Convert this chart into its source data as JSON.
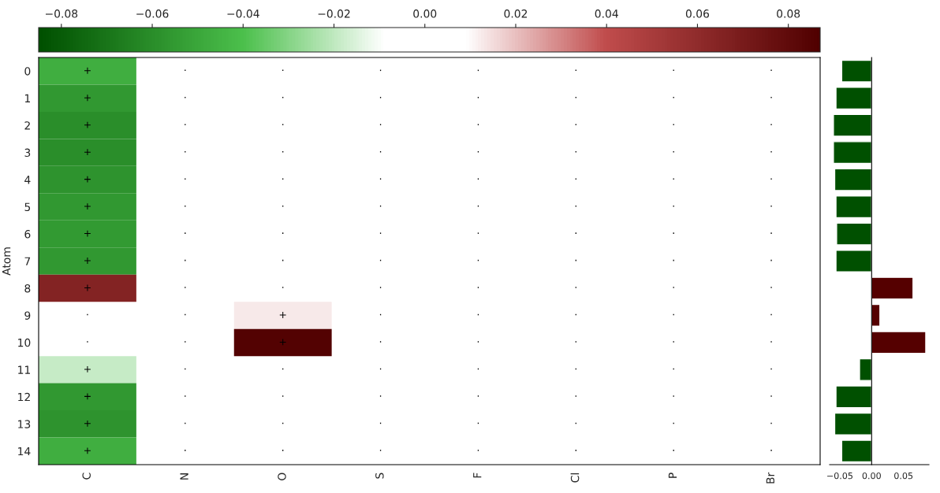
{
  "chart_data": [
    {
      "type": "heatmap",
      "ylabel": "Atom",
      "categories": [
        "C",
        "N",
        "O",
        "S",
        "F",
        "Cl",
        "P",
        "Br"
      ],
      "y_categories": [
        "0",
        "1",
        "2",
        "3",
        "4",
        "5",
        "6",
        "7",
        "8",
        "9",
        "10",
        "11",
        "12",
        "13",
        "14"
      ],
      "cells": [
        [
          -0.047,
          null,
          null,
          null,
          null,
          null,
          null,
          null
        ],
        [
          -0.056,
          null,
          null,
          null,
          null,
          null,
          null,
          null
        ],
        [
          -0.06,
          null,
          null,
          null,
          null,
          null,
          null,
          null
        ],
        [
          -0.06,
          null,
          null,
          null,
          null,
          null,
          null,
          null
        ],
        [
          -0.058,
          null,
          null,
          null,
          null,
          null,
          null,
          null
        ],
        [
          -0.056,
          null,
          null,
          null,
          null,
          null,
          null,
          null
        ],
        [
          -0.055,
          null,
          null,
          null,
          null,
          null,
          null,
          null
        ],
        [
          -0.056,
          null,
          null,
          null,
          null,
          null,
          null,
          null
        ],
        [
          0.065,
          null,
          null,
          null,
          null,
          null,
          null,
          null
        ],
        [
          null,
          null,
          0.013,
          null,
          null,
          null,
          null,
          null
        ],
        [
          null,
          null,
          0.085,
          null,
          null,
          null,
          null,
          null
        ],
        [
          -0.019,
          null,
          null,
          null,
          null,
          null,
          null,
          null
        ],
        [
          -0.056,
          null,
          null,
          null,
          null,
          null,
          null,
          null
        ],
        [
          -0.058,
          null,
          null,
          null,
          null,
          null,
          null,
          null
        ],
        [
          -0.047,
          null,
          null,
          null,
          null,
          null,
          null,
          null
        ]
      ],
      "cell_labels": [
        [
          "+",
          "·",
          "·",
          "·",
          "·",
          "·",
          "·",
          "·"
        ],
        [
          "+",
          "·",
          "·",
          "·",
          "·",
          "·",
          "·",
          "·"
        ],
        [
          "+",
          "·",
          "·",
          "·",
          "·",
          "·",
          "·",
          "·"
        ],
        [
          "+",
          "·",
          "·",
          "·",
          "·",
          "·",
          "·",
          "·"
        ],
        [
          "+",
          "·",
          "·",
          "·",
          "·",
          "·",
          "·",
          "·"
        ],
        [
          "+",
          "·",
          "·",
          "·",
          "·",
          "·",
          "·",
          "·"
        ],
        [
          "+",
          "·",
          "·",
          "·",
          "·",
          "·",
          "·",
          "·"
        ],
        [
          "+",
          "·",
          "·",
          "·",
          "·",
          "·",
          "·",
          "·"
        ],
        [
          "+",
          "·",
          "·",
          "·",
          "·",
          "·",
          "·",
          "·"
        ],
        [
          "·",
          "·",
          "+",
          "·",
          "·",
          "·",
          "·",
          "·"
        ],
        [
          "·",
          "·",
          "+",
          "·",
          "·",
          "·",
          "·",
          "·"
        ],
        [
          "+",
          "·",
          "·",
          "·",
          "·",
          "·",
          "·",
          "·"
        ],
        [
          "+",
          "·",
          "·",
          "·",
          "·",
          "·",
          "·",
          "·"
        ],
        [
          "+",
          "·",
          "·",
          "·",
          "·",
          "·",
          "·",
          "·"
        ],
        [
          "+",
          "·",
          "·",
          "·",
          "·",
          "·",
          "·",
          "·"
        ]
      ],
      "clim": [
        -0.085,
        0.087
      ],
      "cticks": [
        {
          "value": -0.08,
          "label": "−0.08"
        },
        {
          "value": -0.06,
          "label": "−0.06"
        },
        {
          "value": -0.04,
          "label": "−0.04"
        },
        {
          "value": -0.02,
          "label": "−0.02"
        },
        {
          "value": 0,
          "label": "0.00"
        },
        {
          "value": 0.02,
          "label": "0.02"
        },
        {
          "value": 0.04,
          "label": "0.04"
        },
        {
          "value": 0.06,
          "label": "0.06"
        },
        {
          "value": 0.08,
          "label": "0.08"
        }
      ]
    },
    {
      "type": "bar",
      "orientation": "horizontal",
      "tick_labels": "x",
      "categories": [
        "0",
        "1",
        "2",
        "3",
        "4",
        "5",
        "6",
        "7",
        "8",
        "9",
        "10",
        "11",
        "12",
        "13",
        "14"
      ],
      "values": [
        -0.047,
        -0.056,
        -0.06,
        -0.06,
        -0.058,
        -0.056,
        -0.055,
        -0.056,
        0.065,
        0.013,
        0.085,
        -0.019,
        -0.056,
        -0.058,
        -0.047
      ],
      "colors": [
        "#005000",
        "#005000",
        "#005000",
        "#005000",
        "#005000",
        "#005000",
        "#005000",
        "#005000",
        "#550000",
        "#550000",
        "#550000",
        "#005000",
        "#005000",
        "#005000",
        "#005000"
      ],
      "xlim": [
        -0.066,
        0.09
      ],
      "xticks": [
        {
          "value": -0.05,
          "label": "−0.05"
        },
        {
          "value": 0,
          "label": "0.00"
        },
        {
          "value": 0.05,
          "label": "0.05"
        }
      ]
    }
  ]
}
